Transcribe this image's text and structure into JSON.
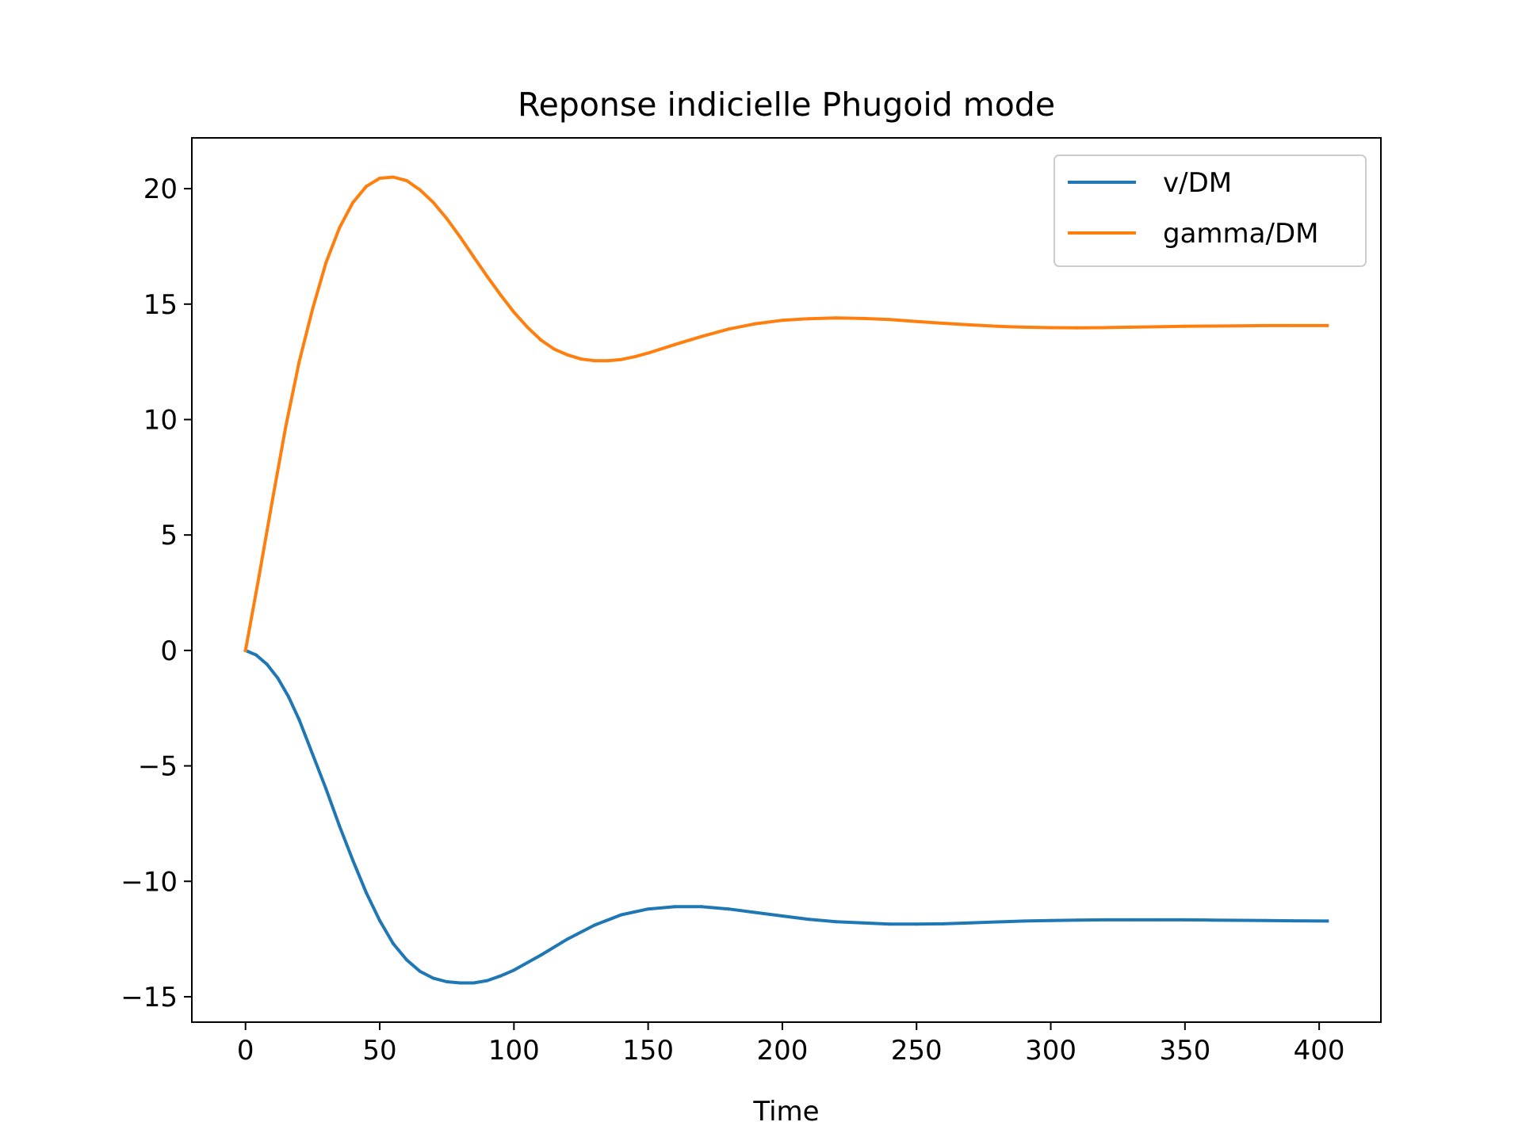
{
  "chart_data": {
    "type": "line",
    "title": "Reponse indicielle Phugoid mode",
    "xlabel": "Time",
    "ylabel": "",
    "xlim": [
      -20,
      423
    ],
    "ylim": [
      -16.1,
      22.2
    ],
    "xticks": [
      0,
      50,
      100,
      150,
      200,
      250,
      300,
      350,
      400
    ],
    "yticks": [
      -15,
      -10,
      -5,
      0,
      5,
      10,
      15,
      20
    ],
    "grid": false,
    "legend_position": "top-right",
    "series": [
      {
        "name": "v/DM",
        "color": "#1f77b4",
        "x": [
          0,
          4,
          8,
          12,
          16,
          20,
          25,
          30,
          35,
          40,
          45,
          50,
          55,
          60,
          65,
          70,
          75,
          80,
          85,
          90,
          95,
          100,
          110,
          120,
          130,
          140,
          150,
          160,
          170,
          180,
          190,
          200,
          210,
          220,
          230,
          240,
          250,
          260,
          270,
          280,
          290,
          300,
          310,
          320,
          330,
          340,
          350,
          360,
          370,
          380,
          390,
          403
        ],
        "y": [
          0,
          -0.2,
          -0.6,
          -1.2,
          -2.0,
          -3.0,
          -4.5,
          -6.0,
          -7.6,
          -9.1,
          -10.5,
          -11.7,
          -12.7,
          -13.4,
          -13.9,
          -14.2,
          -14.35,
          -14.4,
          -14.4,
          -14.3,
          -14.1,
          -13.85,
          -13.2,
          -12.5,
          -11.9,
          -11.45,
          -11.2,
          -11.1,
          -11.1,
          -11.2,
          -11.35,
          -11.5,
          -11.65,
          -11.75,
          -11.8,
          -11.85,
          -11.85,
          -11.84,
          -11.8,
          -11.76,
          -11.72,
          -11.7,
          -11.68,
          -11.67,
          -11.67,
          -11.67,
          -11.67,
          -11.68,
          -11.69,
          -11.7,
          -11.71,
          -11.72
        ]
      },
      {
        "name": "gamma/DM",
        "color": "#ff7f0e",
        "x": [
          0,
          5,
          10,
          15,
          20,
          25,
          30,
          35,
          40,
          45,
          50,
          55,
          60,
          65,
          70,
          75,
          80,
          85,
          90,
          95,
          100,
          105,
          110,
          115,
          120,
          125,
          130,
          135,
          140,
          145,
          150,
          160,
          170,
          180,
          190,
          200,
          210,
          220,
          230,
          240,
          250,
          260,
          270,
          280,
          290,
          300,
          310,
          320,
          330,
          340,
          350,
          360,
          370,
          380,
          390,
          403
        ],
        "y": [
          0,
          3.2,
          6.5,
          9.7,
          12.5,
          14.8,
          16.8,
          18.3,
          19.4,
          20.1,
          20.45,
          20.5,
          20.35,
          19.95,
          19.4,
          18.7,
          17.9,
          17.05,
          16.2,
          15.4,
          14.65,
          14.0,
          13.45,
          13.05,
          12.8,
          12.62,
          12.55,
          12.55,
          12.6,
          12.72,
          12.88,
          13.25,
          13.6,
          13.92,
          14.15,
          14.3,
          14.37,
          14.4,
          14.38,
          14.33,
          14.25,
          14.17,
          14.1,
          14.04,
          14.0,
          13.98,
          13.97,
          13.98,
          14.0,
          14.02,
          14.04,
          14.05,
          14.06,
          14.07,
          14.07,
          14.07
        ]
      }
    ]
  }
}
